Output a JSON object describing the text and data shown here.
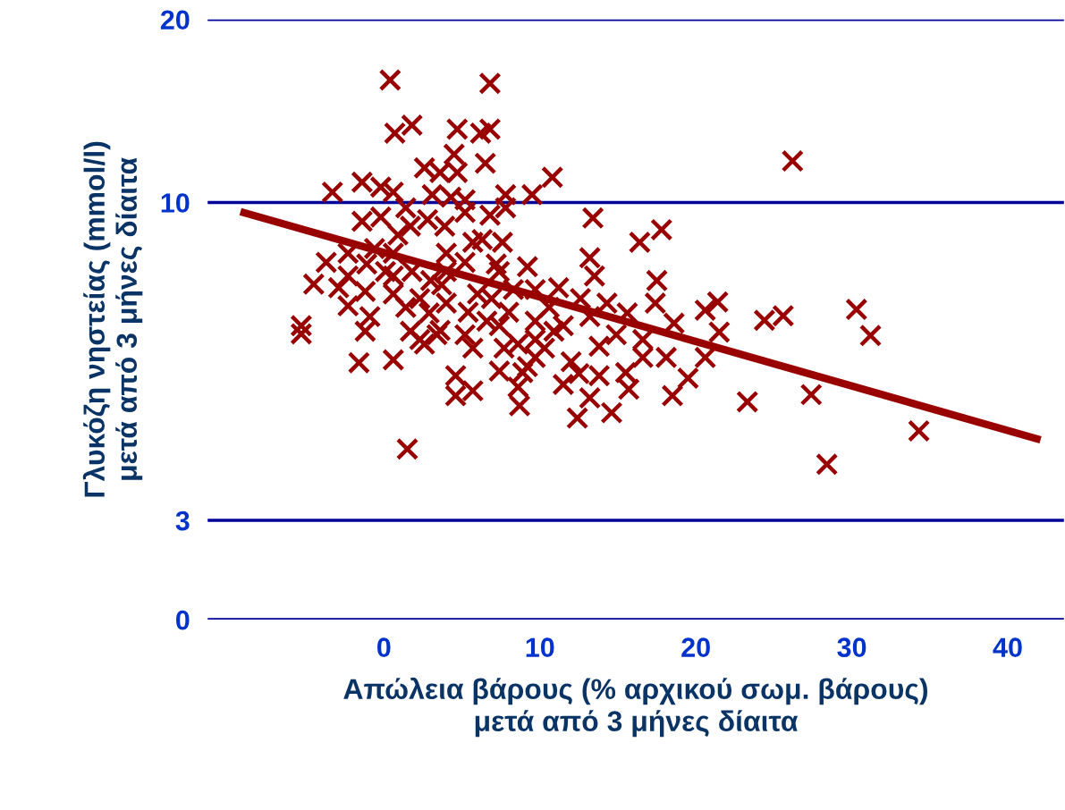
{
  "chart_data": {
    "type": "scatter",
    "xlabel": "Απώλεια βάρους (% αρχικού σωμ. βάρους)\nμετά από 3 μήνες δίαιτα",
    "ylabel": "Γλυκόζη νηστείας (mmol/l)\nμετά από 3 μήνες δίαιτα",
    "log": "y",
    "grid": "y",
    "xlim": [
      -11.3,
      43.6
    ],
    "xticks": [
      0,
      10,
      20,
      30,
      40
    ],
    "ylim": [
      0,
      20
    ],
    "yticks": [
      0,
      3,
      10,
      20
    ],
    "series": [
      {
        "color": "#990000",
        "marker": "cross",
        "x": [
          0.4,
          6.8,
          0.7,
          1.8,
          4.7,
          6.2,
          6.8,
          6.5,
          10.8,
          26.2,
          -3.3,
          -1.4,
          -0.2,
          0.6,
          3.6,
          4.5,
          4.7,
          2.6,
          3.1,
          7.8,
          9.5,
          4.3,
          5.2,
          13.4,
          17.8,
          16.4,
          -1.4,
          -0.2,
          0.9,
          1.7,
          2.8,
          3.9,
          5.2,
          6.8,
          7.8,
          6.3,
          7.6,
          -3.7,
          -2.3,
          -1.1,
          -4.5,
          -2.3,
          -2.9,
          0.1,
          0.6,
          1.8,
          3.0,
          4.0,
          5.2,
          7.2,
          9.2,
          13.2,
          13.5,
          17.5,
          17.4,
          -2.3,
          -1.2,
          0.6,
          2.3,
          4.0,
          5.4,
          6.9,
          8.3,
          9.7,
          11.2,
          12.6,
          14.3,
          15.6,
          -5.3,
          -5.3,
          -1.2,
          -1.6,
          0.6,
          2.3,
          3.4,
          5.2,
          7.4,
          9.7,
          11.5,
          13.2,
          18.6,
          20.6,
          21.4,
          24.4,
          25.6,
          30.3,
          31.2,
          2.6,
          3.6,
          7.7,
          8.6,
          10.3,
          7.4,
          9.2,
          9.7,
          12.0,
          13.8,
          14.9,
          16.6,
          16.6,
          18.1,
          19.5,
          20.6,
          21.5,
          4.6,
          4.6,
          5.7,
          8.6,
          11.5,
          12.5,
          13.8,
          15.5,
          13.2,
          15.7,
          18.5,
          8.7,
          12.4,
          14.6,
          23.3,
          27.4,
          34.3,
          28.4,
          1.5,
          10.6,
          1.4,
          3.7,
          6.0,
          7.4,
          8.0,
          9.7,
          -0.6,
          0.6,
          1.4,
          8.9,
          10.9,
          6.6,
          5.7,
          1.7,
          2.9,
          -0.9,
          4.0,
          5.7
        ],
        "values": [
          15.9,
          15.7,
          13.0,
          13.4,
          13.2,
          13.0,
          13.2,
          11.6,
          11.0,
          11.7,
          10.4,
          10.8,
          10.6,
          10.4,
          11.2,
          12.0,
          11.2,
          11.4,
          10.3,
          10.3,
          10.3,
          10.2,
          10.1,
          9.43,
          9.02,
          8.6,
          9.31,
          9.46,
          8.84,
          9.14,
          9.37,
          9.14,
          9.63,
          9.53,
          9.8,
          8.69,
          8.6,
          7.97,
          8.25,
          7.92,
          7.34,
          7.57,
          7.24,
          7.7,
          7.57,
          7.7,
          7.44,
          7.7,
          7.97,
          7.92,
          7.84,
          8.11,
          7.57,
          7.44,
          6.83,
          6.76,
          7.14,
          7.07,
          6.95,
          6.83,
          6.6,
          6.95,
          7.19,
          7.19,
          7.24,
          6.95,
          6.83,
          6.58,
          6.27,
          6.08,
          6.14,
          5.45,
          5.51,
          5.95,
          6.06,
          6.06,
          6.27,
          6.38,
          6.27,
          6.49,
          6.33,
          6.65,
          6.86,
          6.4,
          6.51,
          6.67,
          6.04,
          5.85,
          6.16,
          5.76,
          5.85,
          5.76,
          5.28,
          5.37,
          5.56,
          5.47,
          5.8,
          6.06,
          5.95,
          5.56,
          5.56,
          5.14,
          5.56,
          6.12,
          5.19,
          4.81,
          4.9,
          4.97,
          5.02,
          5.23,
          5.19,
          5.25,
          4.77,
          4.93,
          4.81,
          4.63,
          4.42,
          4.51,
          4.7,
          4.83,
          4.21,
          3.71,
          3.93,
          6.72,
          6.72,
          7.32,
          7.07,
          7.7,
          6.6,
          5.95,
          8.4,
          8.25,
          9.8,
          5.25,
          6.14,
          6.38,
          5.76,
          6.14,
          6.58,
          6.49,
          8.25,
          8.6
        ]
      },
      {
        "type": "line",
        "color": "#990000",
        "marker": "none",
        "line_style": "solid",
        "x": [
          -9.2,
          42.1
        ],
        "values": [
          9.66,
          4.07
        ]
      }
    ]
  }
}
